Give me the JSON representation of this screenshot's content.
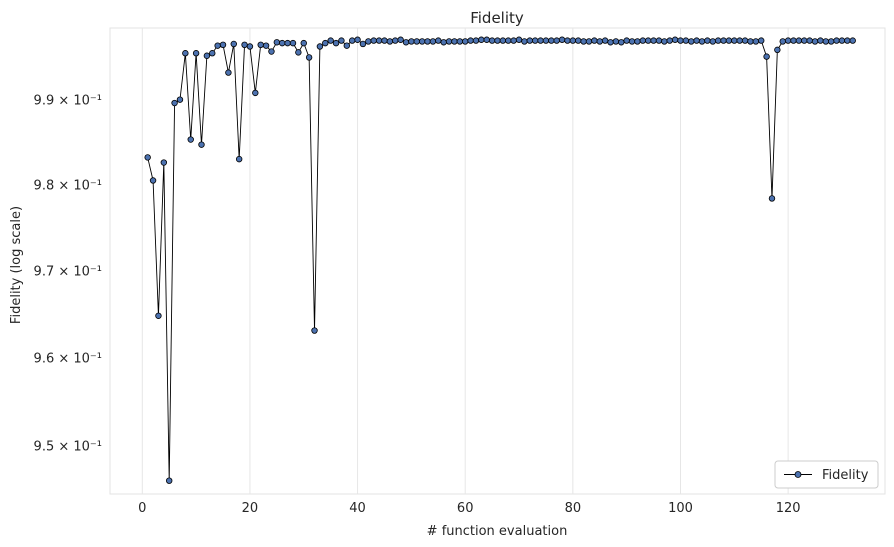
{
  "chart_data": {
    "type": "line",
    "title": "Fidelity",
    "xlabel": "# function evaluation",
    "ylabel": "Fidelity (log scale)",
    "yscale": "log",
    "xlim": [
      -6,
      138
    ],
    "ylim": [
      0.9445,
      0.9985
    ],
    "xticks": [
      0,
      20,
      40,
      60,
      80,
      100,
      120
    ],
    "yticks": [
      {
        "value": 0.95,
        "label": "9.5 × 10⁻¹"
      },
      {
        "value": 0.96,
        "label": "9.6 × 10⁻¹"
      },
      {
        "value": 0.97,
        "label": "9.7 × 10⁻¹"
      },
      {
        "value": 0.98,
        "label": "9.8 × 10⁻¹"
      },
      {
        "value": 0.99,
        "label": "9.9 × 10⁻¹"
      }
    ],
    "grid": true,
    "legend_position": "bottom-right",
    "series": [
      {
        "name": "Fidelity",
        "color": "#4c72b0",
        "line_color": "#000000",
        "x": [
          1,
          2,
          3,
          4,
          5,
          6,
          7,
          8,
          9,
          10,
          11,
          12,
          13,
          14,
          15,
          16,
          17,
          18,
          19,
          20,
          21,
          22,
          23,
          24,
          25,
          26,
          27,
          28,
          29,
          30,
          31,
          32,
          33,
          34,
          35,
          36,
          37,
          38,
          39,
          40,
          41,
          42,
          43,
          44,
          45,
          46,
          47,
          48,
          49,
          50,
          51,
          52,
          53,
          54,
          55,
          56,
          57,
          58,
          59,
          60,
          61,
          62,
          63,
          64,
          65,
          66,
          67,
          68,
          69,
          70,
          71,
          72,
          73,
          74,
          75,
          76,
          77,
          78,
          79,
          80,
          81,
          82,
          83,
          84,
          85,
          86,
          87,
          88,
          89,
          90,
          91,
          92,
          93,
          94,
          95,
          96,
          97,
          98,
          99,
          100,
          101,
          102,
          103,
          104,
          105,
          106,
          107,
          108,
          109,
          110,
          111,
          112,
          113,
          114,
          115,
          116,
          117,
          118,
          119,
          120,
          121,
          122,
          123,
          124,
          125,
          126,
          127,
          128,
          129,
          130,
          131,
          132
        ],
        "y": [
          0.9832,
          0.9805,
          0.9648,
          0.9826,
          0.946,
          0.9896,
          0.99,
          0.9955,
          0.9853,
          0.9955,
          0.9847,
          0.9952,
          0.9955,
          0.9964,
          0.9965,
          0.9932,
          0.9966,
          0.983,
          0.9965,
          0.9963,
          0.9908,
          0.9965,
          0.9964,
          0.9957,
          0.9968,
          0.9967,
          0.9967,
          0.9967,
          0.9956,
          0.9967,
          0.995,
          0.9631,
          0.9963,
          0.9967,
          0.997,
          0.9967,
          0.997,
          0.9964,
          0.997,
          0.9971,
          0.9966,
          0.9969,
          0.997,
          0.997,
          0.997,
          0.9969,
          0.997,
          0.9971,
          0.9968,
          0.9969,
          0.9969,
          0.9969,
          0.9969,
          0.9969,
          0.997,
          0.9968,
          0.9969,
          0.9969,
          0.9969,
          0.9969,
          0.997,
          0.997,
          0.9971,
          0.9971,
          0.997,
          0.997,
          0.997,
          0.997,
          0.997,
          0.9971,
          0.9969,
          0.997,
          0.997,
          0.997,
          0.997,
          0.997,
          0.997,
          0.9971,
          0.997,
          0.997,
          0.997,
          0.9969,
          0.9969,
          0.997,
          0.9969,
          0.997,
          0.9968,
          0.9969,
          0.9968,
          0.997,
          0.9969,
          0.9969,
          0.997,
          0.997,
          0.997,
          0.997,
          0.9969,
          0.997,
          0.9971,
          0.997,
          0.997,
          0.9969,
          0.997,
          0.9969,
          0.997,
          0.9969,
          0.997,
          0.997,
          0.997,
          0.997,
          0.997,
          0.997,
          0.9969,
          0.9969,
          0.997,
          0.9951,
          0.9784,
          0.9959,
          0.9969,
          0.997,
          0.997,
          0.997,
          0.997,
          0.997,
          0.9969,
          0.997,
          0.9969,
          0.9969,
          0.997,
          0.997,
          0.997,
          0.997
        ]
      }
    ]
  }
}
